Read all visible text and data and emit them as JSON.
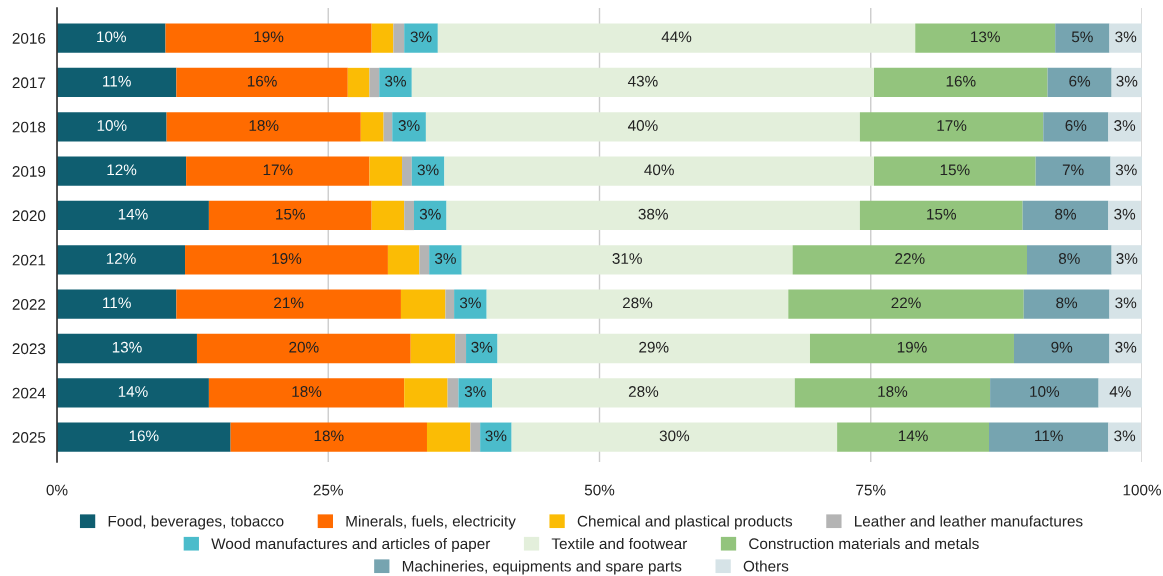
{
  "chart_data": {
    "type": "bar",
    "orientation": "horizontal",
    "stacked": true,
    "categories": [
      "2016",
      "2017",
      "2018",
      "2019",
      "2020",
      "2021",
      "2022",
      "2023",
      "2024",
      "2025"
    ],
    "series": [
      {
        "name": "Food, beverages, tobacco",
        "color": "#0f5e70",
        "values": [
          10.0,
          11.0,
          10.1,
          11.9,
          14.0,
          11.8,
          11.0,
          12.9,
          14.0,
          16.0
        ],
        "value_labels": [
          "10%",
          "11%",
          "10%",
          "12%",
          "14%",
          "12%",
          "11%",
          "13%",
          "14%",
          "16%"
        ]
      },
      {
        "name": "Minerals, fuels, electricity",
        "color": "#ff6b00",
        "values": [
          19.0,
          15.8,
          17.9,
          16.9,
          15.0,
          18.7,
          20.7,
          19.7,
          18.0,
          18.1
        ],
        "value_labels": [
          "19%",
          "16%",
          "18%",
          "17%",
          "15%",
          "19%",
          "21%",
          "20%",
          "18%",
          "18%"
        ]
      },
      {
        "name": "Chemical and plastical products",
        "color": "#fbbc05",
        "values": [
          2.0,
          2.0,
          2.1,
          3.0,
          3.0,
          2.9,
          4.1,
          4.1,
          4.0,
          4.0
        ]
      },
      {
        "name": "Leather and leather manufactures",
        "color": "#b4b4b4",
        "values": [
          1.0,
          0.9,
          0.8,
          0.9,
          0.9,
          0.9,
          0.8,
          1.0,
          1.0,
          0.9
        ]
      },
      {
        "name": "Wood manufactures and articles of paper",
        "color": "#4bbccb",
        "values": [
          3.1,
          3.0,
          3.1,
          3.0,
          3.0,
          3.0,
          3.0,
          2.9,
          3.1,
          2.9
        ],
        "value_labels": [
          "3%",
          "3%",
          "3%",
          "3%",
          "3%",
          "3%",
          "3%",
          "3%",
          "3%",
          "3%"
        ]
      },
      {
        "name": "Textile and footwear",
        "color": "#e3efdb",
        "values": [
          44.0,
          42.6,
          40.0,
          39.6,
          38.1,
          30.5,
          27.8,
          28.8,
          27.9,
          30.0
        ],
        "value_labels": [
          "44%",
          "43%",
          "40%",
          "40%",
          "38%",
          "31%",
          "28%",
          "29%",
          "28%",
          "30%"
        ]
      },
      {
        "name": "Construction materials and metals",
        "color": "#93c47d",
        "values": [
          12.9,
          16.0,
          16.9,
          14.9,
          15.0,
          21.6,
          21.7,
          18.8,
          18.0,
          14.0
        ],
        "value_labels": [
          "13%",
          "16%",
          "17%",
          "15%",
          "15%",
          "22%",
          "22%",
          "19%",
          "18%",
          "14%"
        ]
      },
      {
        "name": "Machineries, equipments and spare parts",
        "color": "#76a4b0",
        "values": [
          5.0,
          5.9,
          6.0,
          6.9,
          7.9,
          7.8,
          7.9,
          8.8,
          10.0,
          11.0
        ],
        "value_labels": [
          "5%",
          "6%",
          "6%",
          "7%",
          "8%",
          "8%",
          "8%",
          "9%",
          "10%",
          "11%"
        ]
      },
      {
        "name": "Others",
        "color": "#d6e3e7",
        "values": [
          3.0,
          2.8,
          3.0,
          2.9,
          3.0,
          2.8,
          3.0,
          3.0,
          4.0,
          3.0
        ],
        "value_labels": [
          "3%",
          "3%",
          "3%",
          "3%",
          "3%",
          "3%",
          "3%",
          "3%",
          "4%",
          "3%"
        ]
      }
    ],
    "xlim": [
      0,
      100
    ],
    "xticks": [
      {
        "value": 0,
        "label": "0%"
      },
      {
        "value": 25,
        "label": "25%"
      },
      {
        "value": 50,
        "label": "50%"
      },
      {
        "value": 75,
        "label": "75%"
      },
      {
        "value": 100,
        "label": "100%"
      }
    ],
    "grid": "x",
    "legend": "bottom"
  }
}
